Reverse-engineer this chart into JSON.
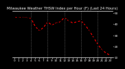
{
  "title": "Milwaukee Weather THSW Index per Hour (F) (Last 24 Hours)",
  "x_values": [
    0,
    1,
    2,
    3,
    4,
    5,
    6,
    7,
    8,
    9,
    10,
    11,
    12,
    13,
    14,
    15,
    16,
    17,
    18,
    19,
    20,
    21,
    22,
    23
  ],
  "y_values": [
    46,
    46,
    46,
    46,
    45,
    38,
    34,
    37,
    42,
    39,
    41,
    42,
    46,
    43,
    41,
    42,
    43,
    39,
    34,
    28,
    22,
    17,
    14,
    12
  ],
  "ylim": [
    10,
    52
  ],
  "xlim": [
    -0.5,
    23.5
  ],
  "line_color": "#FF0000",
  "marker_color": "#000000",
  "grid_color": "#808080",
  "bg_color": "#000000",
  "plot_bg_color": "#000000",
  "tick_color": "#FFFFFF",
  "tick_label_fontsize": 3.0,
  "title_fontsize": 3.8,
  "ylabel_values": [
    10,
    20,
    30,
    40,
    50
  ],
  "x_tick_labels": [
    "0",
    "1",
    "2",
    "3",
    "4",
    "5",
    "6",
    "7",
    "8",
    "9",
    "10",
    "11",
    "12",
    "13",
    "14",
    "15",
    "16",
    "17",
    "18",
    "19",
    "20",
    "21",
    "22",
    "23"
  ],
  "vline_positions": [
    4,
    8,
    12,
    16,
    20
  ],
  "spine_color": "#FFFFFF",
  "right_spine_color": "#000000"
}
